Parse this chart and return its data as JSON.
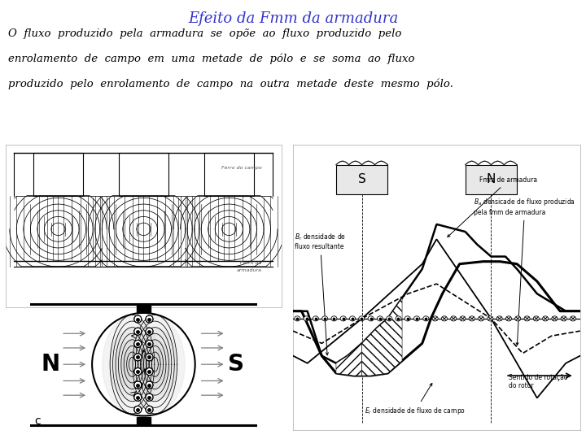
{
  "title": "Efeito da Fmm da armadura",
  "title_color": "#3333CC",
  "body_text_line1": "O  fluxo  produzido  pela  armadura  se  opõe  ao  fluxo  produzido  pelo",
  "body_text_line2": "enrolamento  de  campo  em  uma  metade  de  pólo  e  se  soma  ao  fluxo",
  "body_text_line3": "produzido  pelo  enrolamento  de  campo  na  outra  metade  deste  mesmo  pólo.",
  "bg_color": "#FFFFFF",
  "text_color": "#000000",
  "font_size_title": 13,
  "font_size_body": 9.5
}
